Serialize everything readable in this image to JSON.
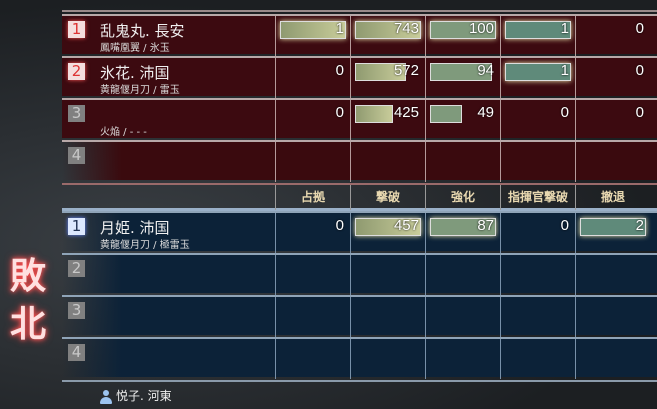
{
  "result_label": "敗北",
  "columns": [
    "占拠",
    "撃破",
    "強化",
    "指揮官撃破",
    "撤退"
  ],
  "red_team": [
    {
      "rank": "1",
      "name": "乱鬼丸. 長安",
      "sub": "鳳嘴凰翼 / 氷玉",
      "stats": [
        "1",
        "743",
        "100",
        "1",
        "0"
      ]
    },
    {
      "rank": "2",
      "name": "氷花. 沛国",
      "sub": "黄龍偃月刀 / 雷玉",
      "stats": [
        "0",
        "572",
        "94",
        "1",
        "0"
      ]
    },
    {
      "rank": "3",
      "name": "",
      "sub": "火焔 / - - -",
      "stats": [
        "0",
        "425",
        "49",
        "0",
        "0"
      ]
    },
    {
      "rank": "4",
      "name": "",
      "sub": "",
      "stats": []
    }
  ],
  "blue_team": [
    {
      "rank": "1",
      "name": "月姫. 沛国",
      "sub": "黄龍偃月刀 / 極雷玉",
      "stats": [
        "0",
        "457",
        "87",
        "0",
        "2"
      ]
    },
    {
      "rank": "2",
      "name": "",
      "sub": "",
      "stats": []
    },
    {
      "rank": "3",
      "name": "",
      "sub": "",
      "stats": []
    },
    {
      "rank": "4",
      "name": "",
      "sub": "",
      "stats": []
    }
  ],
  "player": {
    "icon": "user-icon",
    "name": "悦子. 河東"
  },
  "colors": {
    "red_team": "#3c0a10",
    "blue_team": "#0c2238",
    "result": "#ff6060"
  }
}
